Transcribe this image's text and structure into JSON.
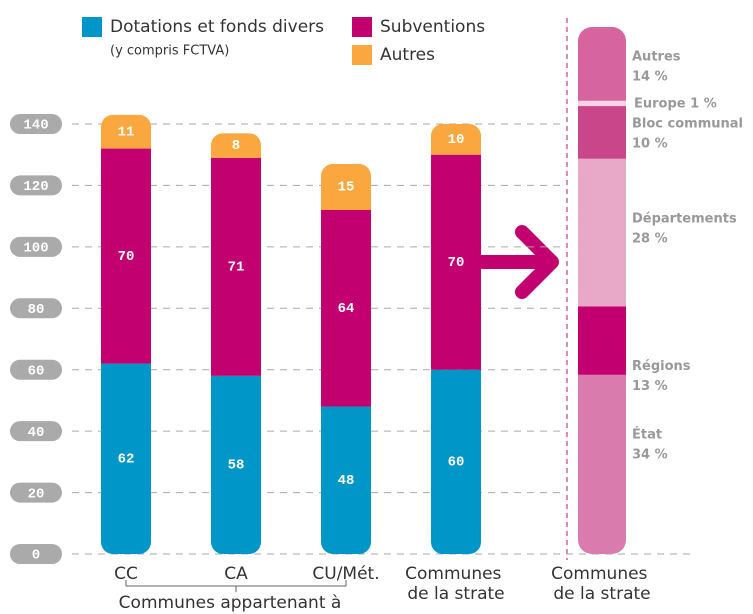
{
  "chart_data": [
    {
      "type": "stacked-bar",
      "categories": [
        "CC",
        "CA",
        "CU/Mét.",
        "Communes de la strate"
      ],
      "group_label": "Communes appartenant à",
      "series": [
        {
          "name": "Dotations et fonds divers",
          "note": "(y compris FCTVA)",
          "color": "#0096c8",
          "values": [
            62,
            58,
            48,
            60
          ]
        },
        {
          "name": "Subventions",
          "color": "#c2006f",
          "values": [
            70,
            71,
            64,
            70
          ]
        },
        {
          "name": "Autres",
          "color": "#f9a73e",
          "values": [
            11,
            8,
            15,
            10
          ]
        }
      ],
      "ylim": [
        0,
        140
      ],
      "yticks": [
        0,
        20,
        40,
        60,
        80,
        100,
        120,
        140
      ],
      "grid": true
    },
    {
      "type": "breakdown-bar",
      "category": "Communes de la strate",
      "categories": [
        "État",
        "Régions",
        "Départements",
        "Bloc communal",
        "Europe",
        "Autres"
      ],
      "values": [
        34,
        13,
        28,
        10,
        1,
        14
      ],
      "value_labels": [
        "34 %",
        "13 %",
        "28 %",
        "10 %",
        "1 %",
        "14 %"
      ],
      "colors": [
        "#d97cad",
        "#c2006f",
        "#e8a9c9",
        "#c9468a",
        "#f7d3e4",
        "#d6649f"
      ]
    }
  ]
}
